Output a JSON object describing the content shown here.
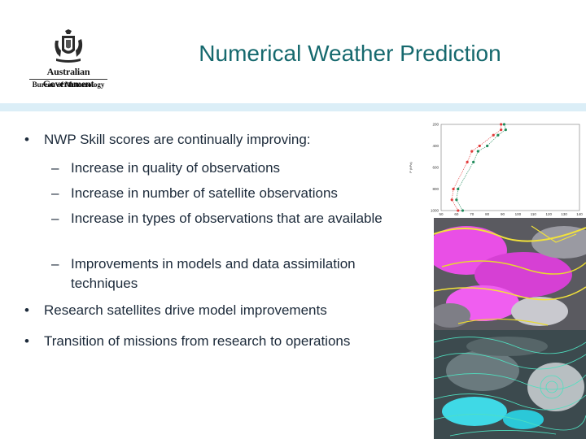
{
  "logo": {
    "line1": "Australian Government",
    "line2": "Bureau of Meteorology"
  },
  "title": "Numerical Weather Prediction",
  "bullets": {
    "main1": "NWP Skill scores are continually improving:",
    "sub1": "Increase in quality of observations",
    "sub2": "Increase in number of satellite observations",
    "sub3": "Increase in types of observations that are available",
    "sub4": "Improvements in models and data assimilation techniques",
    "main2": "Research satellites drive model improvements",
    "main3": "Transition of missions from research to operations",
    "bullet_glyph": "•",
    "dash_glyph": "–"
  },
  "chart_data": {
    "type": "line",
    "ylabel": "P (hPa)",
    "yticks": [
      "200",
      "400",
      "600",
      "800",
      "1000"
    ],
    "xticks": [
      "50",
      "60",
      "70",
      "80",
      "90",
      "100",
      "110",
      "120",
      "130",
      "140"
    ],
    "ylim": [
      1000,
      200
    ],
    "xlim": [
      50,
      140
    ],
    "series": [
      {
        "color": "#e23b3b",
        "x": [
          89,
          89,
          84,
          75,
          70,
          67,
          58,
          57,
          61
        ],
        "y": [
          200,
          250,
          300,
          400,
          450,
          550,
          800,
          900,
          1000
        ]
      },
      {
        "color": "#1f8a5a",
        "x": [
          91,
          92,
          87,
          80,
          74,
          71,
          61,
          60,
          64
        ],
        "y": [
          200,
          250,
          300,
          400,
          450,
          550,
          800,
          900,
          1000
        ]
      }
    ]
  }
}
